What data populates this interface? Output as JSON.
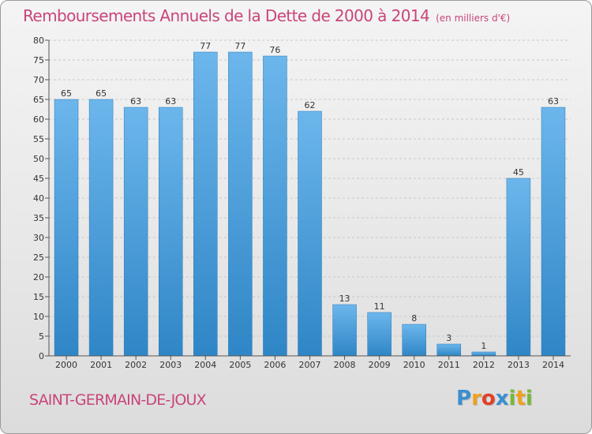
{
  "header": {
    "title": "Remboursements Annuels de la Dette de 2000 à 2014",
    "subtitle": "(en milliers d'€)"
  },
  "footer": {
    "commune": "SAINT-GERMAIN-DE-JOUX",
    "logo_letters": [
      "P",
      "r",
      "o",
      "x",
      "i",
      "t",
      "i"
    ],
    "logo_colors": [
      "#3a8fd1",
      "#f0a020",
      "#e0402a",
      "#3a8fd1",
      "#78b83a",
      "#f0a020",
      "#78b83a"
    ]
  },
  "colors": {
    "accent": "#c8457a",
    "bar_light": "#6cb6ec",
    "bar_dark": "#2f86c6",
    "axis": "#555555",
    "grid": "#c8c8c8"
  },
  "chart_data": {
    "type": "bar",
    "categories": [
      "2000",
      "2001",
      "2002",
      "2003",
      "2004",
      "2005",
      "2006",
      "2007",
      "2008",
      "2009",
      "2010",
      "2011",
      "2012",
      "2013",
      "2014"
    ],
    "values": [
      65,
      65,
      63,
      63,
      77,
      77,
      76,
      62,
      13,
      11,
      8,
      3,
      1,
      45,
      63
    ],
    "data_labels": [
      "65",
      "65",
      "63",
      "63",
      "77",
      "77",
      "76",
      "62",
      "13",
      "11",
      "8",
      "3",
      "1",
      "45",
      "63"
    ],
    "ylim": [
      0,
      80
    ],
    "yticks": [
      "0",
      "5",
      "10",
      "15",
      "20",
      "25",
      "30",
      "35",
      "40",
      "45",
      "50",
      "55",
      "60",
      "65",
      "70",
      "75",
      "80"
    ],
    "grid": "horizontal dashed",
    "legend": "none"
  }
}
